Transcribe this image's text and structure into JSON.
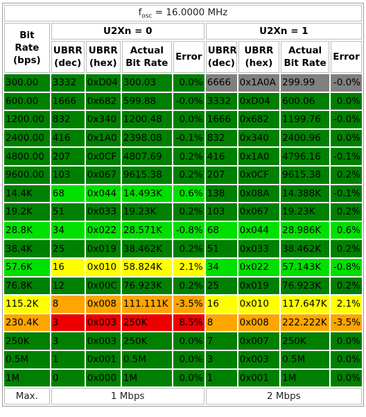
{
  "header": {
    "title": "f",
    "title_sub": "osc",
    "title_value": " = 16.0000 MHz"
  },
  "columns": {
    "rate": "Bit Rate (bps)",
    "groups": [
      {
        "name": "U2Xn = 0",
        "columns": [
          "UBRR (dec)",
          "UBRR (hex)",
          "Actual Bit Rate",
          "Error"
        ]
      },
      {
        "name": "U2Xn = 1",
        "columns": [
          "UBRR (dec)",
          "UBRR (hex)",
          "Actual Bit Rate",
          "Error"
        ]
      }
    ]
  },
  "rows": [
    {
      "rate": "300.00",
      "rate_color": "#008000",
      "groups": [
        {
          "cells": [
            "3332",
            "0xD04",
            "300.03",
            "0.0%"
          ],
          "color": "#008000"
        },
        {
          "cells": [
            "6666",
            "0x1A0A",
            "299.99",
            "-0.0%"
          ],
          "color": "#808080"
        }
      ]
    },
    {
      "rate": "600.00",
      "rate_color": "#008000",
      "groups": [
        {
          "cells": [
            "1666",
            "0x682",
            "599.88",
            "-0.0%"
          ],
          "color": "#008000"
        },
        {
          "cells": [
            "3332",
            "0xD04",
            "600.06",
            "0.0%"
          ],
          "color": "#008000"
        }
      ]
    },
    {
      "rate": "1200.00",
      "rate_color": "#008000",
      "groups": [
        {
          "cells": [
            "832",
            "0x340",
            "1200.48",
            "0.0%"
          ],
          "color": "#008000"
        },
        {
          "cells": [
            "1666",
            "0x682",
            "1199.76",
            "-0.0%"
          ],
          "color": "#008000"
        }
      ]
    },
    {
      "rate": "2400.00",
      "rate_color": "#008000",
      "groups": [
        {
          "cells": [
            "416",
            "0x1A0",
            "2398.08",
            "-0.1%"
          ],
          "color": "#008000"
        },
        {
          "cells": [
            "832",
            "0x340",
            "2400.96",
            "0.0%"
          ],
          "color": "#008000"
        }
      ]
    },
    {
      "rate": "4800.00",
      "rate_color": "#008000",
      "groups": [
        {
          "cells": [
            "207",
            "0x0CF",
            "4807.69",
            "0.2%"
          ],
          "color": "#008000"
        },
        {
          "cells": [
            "416",
            "0x1A0",
            "4796.16",
            "-0.1%"
          ],
          "color": "#008000"
        }
      ]
    },
    {
      "rate": "9600.00",
      "rate_color": "#008000",
      "groups": [
        {
          "cells": [
            "103",
            "0x067",
            "9615.38",
            "0.2%"
          ],
          "color": "#008000"
        },
        {
          "cells": [
            "207",
            "0x0CF",
            "9615.38",
            "0.2%"
          ],
          "color": "#008000"
        }
      ]
    },
    {
      "rate": "14.4K",
      "rate_color": "#008000",
      "groups": [
        {
          "cells": [
            "68",
            "0x044",
            "14.493K",
            "0.6%"
          ],
          "color": "#00e000"
        },
        {
          "cells": [
            "138",
            "0x08A",
            "14.388K",
            "-0.1%"
          ],
          "color": "#008000"
        }
      ]
    },
    {
      "rate": "19.2K",
      "rate_color": "#008000",
      "groups": [
        {
          "cells": [
            "51",
            "0x033",
            "19.23K",
            "0.2%"
          ],
          "color": "#008000"
        },
        {
          "cells": [
            "103",
            "0x067",
            "19.23K",
            "0.2%"
          ],
          "color": "#008000"
        }
      ]
    },
    {
      "rate": "28.8K",
      "rate_color": "#00e000",
      "groups": [
        {
          "cells": [
            "34",
            "0x022",
            "28.571K",
            "-0.8%"
          ],
          "color": "#00e000"
        },
        {
          "cells": [
            "68",
            "0x044",
            "28.986K",
            "0.6%"
          ],
          "color": "#00e000"
        }
      ]
    },
    {
      "rate": "38.4K",
      "rate_color": "#008000",
      "groups": [
        {
          "cells": [
            "25",
            "0x019",
            "38.462K",
            "0.2%"
          ],
          "color": "#008000"
        },
        {
          "cells": [
            "51",
            "0x033",
            "38.462K",
            "0.2%"
          ],
          "color": "#008000"
        }
      ]
    },
    {
      "rate": "57.6K",
      "rate_color": "#00e000",
      "groups": [
        {
          "cells": [
            "16",
            "0x010",
            "58.824K",
            "2.1%"
          ],
          "color": "#ffff00"
        },
        {
          "cells": [
            "34",
            "0x022",
            "57.143K",
            "-0.8%"
          ],
          "color": "#00e000"
        }
      ]
    },
    {
      "rate": "76.8K",
      "rate_color": "#008000",
      "groups": [
        {
          "cells": [
            "12",
            "0x00C",
            "76.923K",
            "0.2%"
          ],
          "color": "#008000"
        },
        {
          "cells": [
            "25",
            "0x019",
            "76.923K",
            "0.2%"
          ],
          "color": "#008000"
        }
      ]
    },
    {
      "rate": "115.2K",
      "rate_color": "#ffff00",
      "groups": [
        {
          "cells": [
            "8",
            "0x008",
            "111.111K",
            "-3.5%"
          ],
          "color": "#ffa500"
        },
        {
          "cells": [
            "16",
            "0x010",
            "117.647K",
            "2.1%"
          ],
          "color": "#ffff00"
        }
      ]
    },
    {
      "rate": "230.4K",
      "rate_color": "#ffa500",
      "groups": [
        {
          "cells": [
            "3",
            "0x003",
            "250K",
            "8.5%"
          ],
          "color": "#ee0000"
        },
        {
          "cells": [
            "8",
            "0x008",
            "222.222K",
            "-3.5%"
          ],
          "color": "#ffa500"
        }
      ]
    },
    {
      "rate": "250K",
      "rate_color": "#008000",
      "groups": [
        {
          "cells": [
            "3",
            "0x003",
            "250K",
            "0.0%"
          ],
          "color": "#008000"
        },
        {
          "cells": [
            "7",
            "0x007",
            "250K",
            "0.0%"
          ],
          "color": "#008000"
        }
      ]
    },
    {
      "rate": "0.5M",
      "rate_color": "#008000",
      "groups": [
        {
          "cells": [
            "1",
            "0x001",
            "0.5M",
            "0.0%"
          ],
          "color": "#008000"
        },
        {
          "cells": [
            "3",
            "0x003",
            "0.5M",
            "0.0%"
          ],
          "color": "#008000"
        }
      ]
    },
    {
      "rate": "1M",
      "rate_color": "#008000",
      "groups": [
        {
          "cells": [
            "0",
            "0x000",
            "1M",
            "0.0%"
          ],
          "color": "#008000"
        },
        {
          "cells": [
            "1",
            "0x001",
            "1M",
            "0.0%"
          ],
          "color": "#008000"
        }
      ]
    }
  ],
  "footer": {
    "label": "Max.",
    "groups": [
      "1 Mbps",
      "2 Mbps"
    ]
  }
}
